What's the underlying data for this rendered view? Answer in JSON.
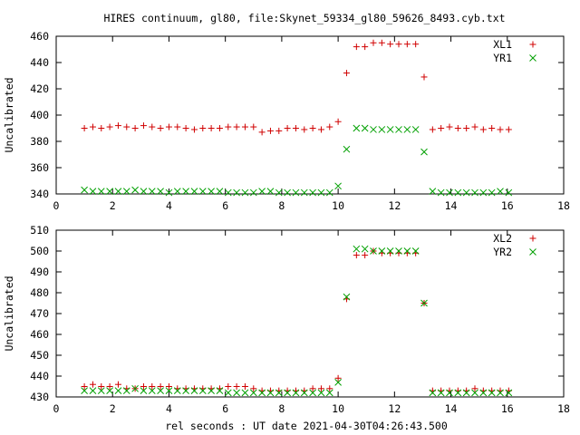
{
  "chart_data": [
    {
      "type": "scatter",
      "title": "HIRES continuum, gl80, file:Skynet_59334_gl80_59626_8493.cyb.txt",
      "xlabel": "",
      "ylabel": "Uncalibrated",
      "xlim": [
        0,
        18
      ],
      "ylim": [
        340,
        460
      ],
      "xticks": [
        "0",
        "2",
        "4",
        "6",
        "8",
        "10",
        "12",
        "14",
        "16",
        "18"
      ],
      "yticks": [
        "340",
        "360",
        "380",
        "400",
        "420",
        "440",
        "460"
      ],
      "legend": "top-right",
      "series": [
        {
          "name": "XL1",
          "marker": "plus",
          "color": "#d00000",
          "x": [
            1.0,
            1.3,
            1.6,
            1.9,
            2.2,
            2.5,
            2.8,
            3.1,
            3.4,
            3.7,
            4.0,
            4.3,
            4.6,
            4.9,
            5.2,
            5.5,
            5.8,
            6.1,
            6.4,
            6.7,
            7.0,
            7.3,
            7.6,
            7.9,
            8.2,
            8.5,
            8.8,
            9.1,
            9.4,
            9.7,
            10.0,
            10.3,
            10.65,
            10.95,
            11.25,
            11.55,
            11.85,
            12.15,
            12.45,
            12.75,
            13.05,
            13.35,
            13.65,
            13.95,
            14.25,
            14.55,
            14.85,
            15.15,
            15.45,
            15.75,
            16.05
          ],
          "y": [
            390,
            391,
            390,
            391,
            392,
            391,
            390,
            392,
            391,
            390,
            391,
            391,
            390,
            389,
            390,
            390,
            390,
            391,
            391,
            391,
            391,
            387,
            388,
            388,
            390,
            390,
            389,
            390,
            389,
            391,
            395,
            432,
            452,
            452,
            455,
            455,
            454,
            454,
            454,
            454,
            429,
            389,
            390,
            391,
            390,
            390,
            391,
            389,
            390,
            389,
            389
          ]
        },
        {
          "name": "YR1",
          "marker": "cross",
          "color": "#00a000",
          "x": [
            1.0,
            1.3,
            1.6,
            1.9,
            2.2,
            2.5,
            2.8,
            3.1,
            3.4,
            3.7,
            4.0,
            4.3,
            4.6,
            4.9,
            5.2,
            5.5,
            5.8,
            6.1,
            6.4,
            6.7,
            7.0,
            7.3,
            7.6,
            7.9,
            8.2,
            8.5,
            8.8,
            9.1,
            9.4,
            9.7,
            10.0,
            10.3,
            10.65,
            10.95,
            11.25,
            11.55,
            11.85,
            12.15,
            12.45,
            12.75,
            13.05,
            13.35,
            13.65,
            13.95,
            14.25,
            14.55,
            14.85,
            15.15,
            15.45,
            15.75,
            16.05
          ],
          "y": [
            343,
            342,
            342,
            342,
            342,
            342,
            343,
            342,
            342,
            342,
            341,
            342,
            342,
            342,
            342,
            342,
            342,
            341,
            341,
            341,
            341,
            342,
            342,
            341,
            341,
            341,
            341,
            341,
            341,
            341,
            346,
            374,
            390,
            390,
            389,
            389,
            389,
            389,
            389,
            389,
            372,
            342,
            341,
            341,
            341,
            341,
            341,
            341,
            341,
            342,
            341
          ]
        }
      ]
    },
    {
      "type": "scatter",
      "title": "",
      "xlabel": "rel seconds : UT date 2021-04-30T04:26:43.500",
      "ylabel": "Uncalibrated",
      "xlim": [
        0,
        18
      ],
      "ylim": [
        430,
        510
      ],
      "xticks": [
        "0",
        "2",
        "4",
        "6",
        "8",
        "10",
        "12",
        "14",
        "16",
        "18"
      ],
      "yticks": [
        "430",
        "440",
        "450",
        "460",
        "470",
        "480",
        "490",
        "500",
        "510"
      ],
      "legend": "top-right",
      "series": [
        {
          "name": "XL2",
          "marker": "plus",
          "color": "#d00000",
          "x": [
            1.0,
            1.3,
            1.6,
            1.9,
            2.2,
            2.5,
            2.8,
            3.1,
            3.4,
            3.7,
            4.0,
            4.3,
            4.6,
            4.9,
            5.2,
            5.5,
            5.8,
            6.1,
            6.4,
            6.7,
            7.0,
            7.3,
            7.6,
            7.9,
            8.2,
            8.5,
            8.8,
            9.1,
            9.4,
            9.7,
            10.0,
            10.3,
            10.65,
            10.95,
            11.25,
            11.55,
            11.85,
            12.15,
            12.45,
            12.75,
            13.05,
            13.35,
            13.65,
            13.95,
            14.25,
            14.55,
            14.85,
            15.15,
            15.45,
            15.75,
            16.05
          ],
          "y": [
            435,
            436,
            435,
            435,
            436,
            434,
            434,
            435,
            435,
            435,
            435,
            434,
            434,
            434,
            434,
            434,
            434,
            435,
            435,
            435,
            434,
            433,
            433,
            433,
            433,
            433,
            433,
            434,
            434,
            434,
            439,
            477,
            498,
            498,
            500,
            499,
            499,
            499,
            499,
            499,
            475,
            433,
            433,
            433,
            433,
            433,
            434,
            433,
            433,
            433,
            433
          ]
        },
        {
          "name": "YR2",
          "marker": "cross",
          "color": "#00a000",
          "x": [
            1.0,
            1.3,
            1.6,
            1.9,
            2.2,
            2.5,
            2.8,
            3.1,
            3.4,
            3.7,
            4.0,
            4.3,
            4.6,
            4.9,
            5.2,
            5.5,
            5.8,
            6.1,
            6.4,
            6.7,
            7.0,
            7.3,
            7.6,
            7.9,
            8.2,
            8.5,
            8.8,
            9.1,
            9.4,
            9.7,
            10.0,
            10.3,
            10.65,
            10.95,
            11.25,
            11.55,
            11.85,
            12.15,
            12.45,
            12.75,
            13.05,
            13.35,
            13.65,
            13.95,
            14.25,
            14.55,
            14.85,
            15.15,
            15.45,
            15.75,
            16.05
          ],
          "y": [
            433,
            433,
            433,
            433,
            433,
            433,
            434,
            433,
            433,
            433,
            433,
            433,
            433,
            433,
            433,
            433,
            433,
            432,
            432,
            432,
            432,
            432,
            432,
            432,
            432,
            432,
            432,
            432,
            432,
            432,
            437,
            478,
            501,
            501,
            500,
            500,
            500,
            500,
            500,
            500,
            475,
            432,
            432,
            432,
            432,
            432,
            432,
            432,
            432,
            432,
            432
          ]
        }
      ]
    }
  ]
}
